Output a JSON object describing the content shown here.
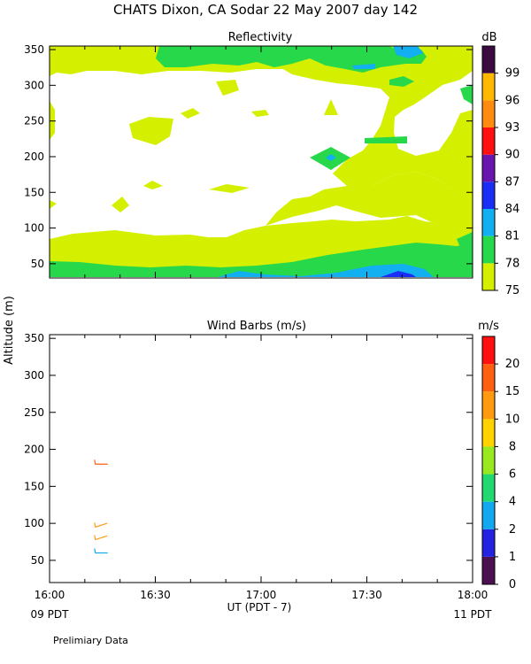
{
  "page": {
    "title": "CHATS Dixon, CA  Sodar  22 May 2007  day 142",
    "y_axis_label": "Altitude (m)",
    "x_axis_label": "UT  (PDT - 7)",
    "left_footer": "09 PDT",
    "right_footer": "11 PDT",
    "note": "Prelimiary Data"
  },
  "chart_data": [
    {
      "type": "heatmap",
      "title": "Reflectivity",
      "colorbar_unit": "dB",
      "colorbar_levels": [
        {
          "label": "75",
          "color": "#d4f000"
        },
        {
          "label": "78",
          "color": "#27d84a"
        },
        {
          "label": "81",
          "color": "#12b0f0"
        },
        {
          "label": "84",
          "color": "#1a2ef5"
        },
        {
          "label": "87",
          "color": "#6a14b0"
        },
        {
          "label": "90",
          "color": "#ff1010"
        },
        {
          "label": "93",
          "color": "#ff8a10"
        },
        {
          "label": "96",
          "color": "#ffb800"
        },
        {
          "label": "99",
          "color": "#3a0a40"
        }
      ],
      "x": [
        "16:00",
        "16:30",
        "17:00",
        "17:30",
        "18:00"
      ],
      "xlim": [
        "16:00",
        "18:00"
      ],
      "ylim": [
        30,
        355
      ],
      "yticks": [
        "50",
        "100",
        "150",
        "200",
        "250",
        "300",
        "350"
      ],
      "levels_shown": [
        {
          "color_index": 0,
          "regions": [
            {
              "alt_min": 30,
              "alt_max": 90,
              "t_start": "16:00",
              "t_end": "18:00"
            },
            {
              "alt_min": 90,
              "alt_max": 130,
              "t_start": "16:35",
              "t_end": "17:55"
            },
            {
              "alt_min": 130,
              "alt_max": 170,
              "t_start": "17:15",
              "t_end": "17:50"
            },
            {
              "alt_min": 230,
              "alt_max": 355,
              "t_start": "17:35",
              "t_end": "18:00"
            },
            {
              "alt_min": 320,
              "alt_max": 355,
              "t_start": "16:05",
              "t_end": "17:45"
            }
          ]
        },
        {
          "color_index": 1,
          "regions": [
            {
              "alt_min": 40,
              "alt_max": 60,
              "t_start": "16:00",
              "t_end": "18:00"
            },
            {
              "alt_min": 190,
              "alt_max": 210,
              "t_start": "17:15",
              "t_end": "17:25"
            },
            {
              "alt_min": 205,
              "alt_max": 220,
              "t_start": "17:30",
              "t_end": "17:40"
            },
            {
              "alt_min": 310,
              "alt_max": 355,
              "t_start": "16:30",
              "t_end": "17:55"
            }
          ]
        },
        {
          "color_index": 2,
          "regions": [
            {
              "alt_min": 40,
              "alt_max": 46,
              "t_start": "16:45",
              "t_end": "17:55"
            },
            {
              "alt_min": 340,
              "alt_max": 355,
              "t_start": "17:45",
              "t_end": "17:50"
            }
          ]
        }
      ]
    },
    {
      "type": "scatter",
      "title": "Wind Barbs (m/s)",
      "colorbar_unit": "m/s",
      "colorbar_levels": [
        {
          "label": "0",
          "color": "#4a1050"
        },
        {
          "label": "1",
          "color": "#2222e0"
        },
        {
          "label": "2",
          "color": "#12a8f0"
        },
        {
          "label": "4",
          "color": "#22d870"
        },
        {
          "label": "6",
          "color": "#9ae820"
        },
        {
          "label": "8",
          "color": "#ffd200"
        },
        {
          "label": "10",
          "color": "#ff9a10"
        },
        {
          "label": "15",
          "color": "#ff6010"
        },
        {
          "label": "20",
          "color": "#ff1010"
        }
      ],
      "x": [
        "16:00",
        "16:30",
        "17:00",
        "17:30",
        "18:00"
      ],
      "xlim": [
        "16:00",
        "18:00"
      ],
      "ylim": [
        20,
        355
      ],
      "yticks": [
        "50",
        "100",
        "150",
        "200",
        "250",
        "300",
        "350"
      ],
      "barbs": [
        {
          "time": "16:12",
          "altitude": 180,
          "speed_color_index": 7,
          "direction": "W"
        },
        {
          "time": "16:12",
          "altitude": 95,
          "speed_color_index": 6,
          "direction": "SW"
        },
        {
          "time": "16:12",
          "altitude": 78,
          "speed_color_index": 6,
          "direction": "SW"
        },
        {
          "time": "16:12",
          "altitude": 60,
          "speed_color_index": 2,
          "direction": "W"
        }
      ]
    }
  ]
}
